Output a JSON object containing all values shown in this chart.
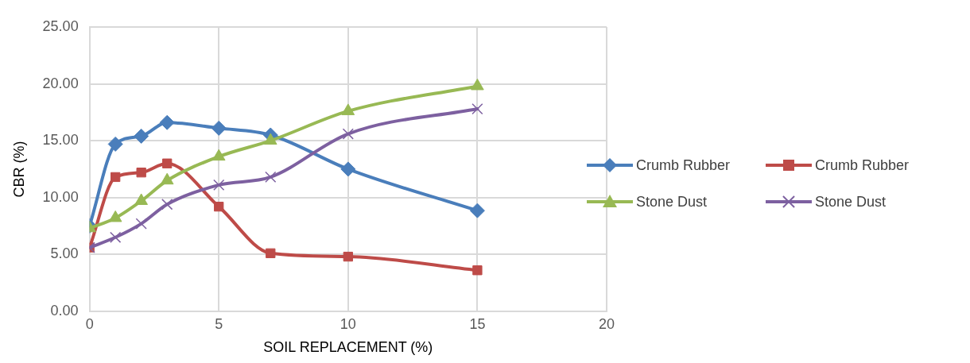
{
  "chart_data": {
    "type": "line",
    "xlabel": "SOIL REPLACEMENT (%)",
    "ylabel": "CBR (%)",
    "x": [
      0,
      1,
      2,
      3,
      5,
      7,
      10,
      15
    ],
    "series": [
      {
        "name": "Crumb Rubber",
        "color": "#4a7ebb",
        "marker": "diamond",
        "values": [
          7.5,
          14.7,
          15.4,
          16.6,
          16.1,
          15.5,
          12.5,
          8.85
        ]
      },
      {
        "name": "Crumb Rubber",
        "color": "#be4b48",
        "marker": "square",
        "values": [
          5.6,
          11.8,
          12.2,
          13.0,
          9.2,
          5.1,
          4.8,
          3.6
        ]
      },
      {
        "name": "Stone Dust",
        "color": "#98b954",
        "marker": "triangle",
        "values": [
          7.3,
          8.2,
          9.7,
          11.5,
          13.6,
          15.0,
          17.6,
          19.8
        ]
      },
      {
        "name": "Stone Dust",
        "color": "#7d60a0",
        "marker": "cross",
        "values": [
          5.6,
          6.5,
          7.7,
          9.4,
          11.1,
          11.8,
          15.6,
          17.8
        ]
      }
    ],
    "xlim": [
      0,
      20
    ],
    "xticks": [
      0,
      5,
      10,
      15,
      20
    ],
    "ylim": [
      0,
      25
    ],
    "yticks": [
      {
        "value": 0,
        "label": "0.00"
      },
      {
        "value": 5,
        "label": "5.00"
      },
      {
        "value": 10,
        "label": "10.00"
      },
      {
        "value": 15,
        "label": "15.00"
      },
      {
        "value": 20,
        "label": "20.00"
      },
      {
        "value": 25,
        "label": "25.00"
      }
    ],
    "grid": true,
    "legend": "right",
    "line_style": "solid"
  }
}
